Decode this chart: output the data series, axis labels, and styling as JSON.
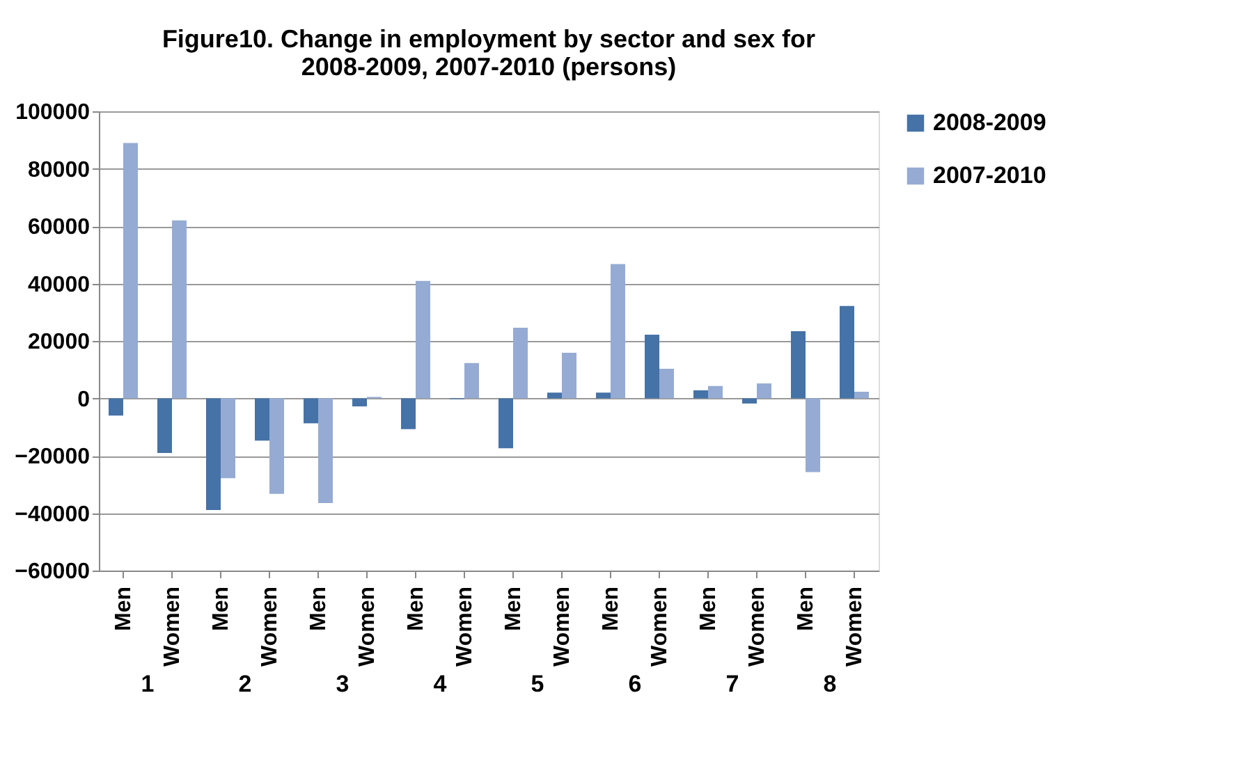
{
  "chart_data": {
    "type": "bar",
    "title": "Figure10. Change in employment by sector and sex for 2008-2009, 2007-2010 (persons)",
    "categories": [
      "Men",
      "Women",
      "Men",
      "Women",
      "Men",
      "Women",
      "Men",
      "Women",
      "Men",
      "Women",
      "Men",
      "Women",
      "Men",
      "Women",
      "Men",
      "Women"
    ],
    "series": [
      {
        "name": "2008-2009",
        "color": "#4572a7",
        "values": [
          -6000,
          -19000,
          -38900,
          -14700,
          -8700,
          -2800,
          -10700,
          -300,
          -17400,
          2000,
          2000,
          22200,
          2800,
          -1800,
          23400,
          32200
        ]
      },
      {
        "name": "2007-2010",
        "color": "#95abd3",
        "values": [
          89000,
          62000,
          -27800,
          -33300,
          -36500,
          500,
          40900,
          12300,
          24600,
          15900,
          46800,
          10300,
          4300,
          5200,
          -25700,
          2300
        ]
      }
    ],
    "annotations": [
      "1",
      "2",
      "3",
      "4",
      "5",
      "6",
      "7",
      "8"
    ],
    "ylim": [
      -60000,
      100000
    ],
    "yticks": [
      -60000,
      -40000,
      -20000,
      0,
      20000,
      40000,
      60000,
      80000,
      100000
    ],
    "grid": "y",
    "legend": "right"
  }
}
